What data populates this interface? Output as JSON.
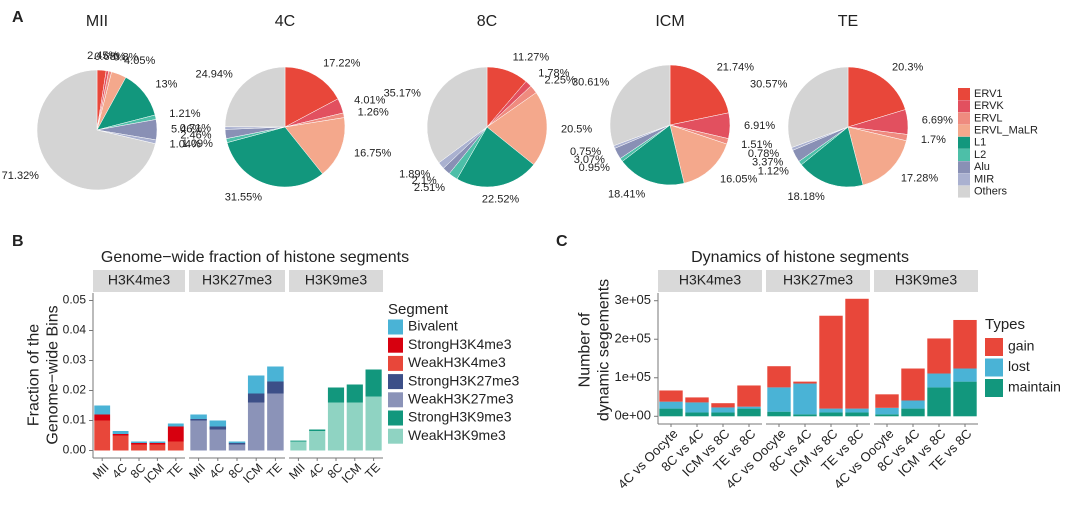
{
  "chart_data": [
    {
      "panel": "A",
      "type": "pie",
      "categories": [
        "ERV1",
        "ERVK",
        "ERVL",
        "ERVL_MaLR",
        "L1",
        "L2",
        "Alu",
        "MIR",
        "Others"
      ],
      "colors": [
        "#e8473a",
        "#e2505f",
        "#ef8b7f",
        "#f4a88c",
        "#12977d",
        "#4dbfa8",
        "#8990b5",
        "#aab1d0",
        "#d4d4d4"
      ],
      "pies": [
        {
          "title": "MII",
          "values": [
            2.45,
            0.68,
            0.8,
            4.05,
            13,
            1.21,
            5.46,
            1.04,
            71.32
          ],
          "value_labels": [
            "2.45%",
            "0.68%",
            "0.8%",
            "4.05%",
            "13%",
            "1.21%",
            "5.46%",
            "1.04%",
            "71.32%"
          ]
        },
        {
          "title": "4C",
          "values": [
            17.22,
            4.01,
            1.26,
            16.75,
            31.55,
            1.09,
            2.46,
            0.71,
            24.94
          ],
          "value_labels": [
            "17.22%",
            "4.01%",
            "1.26%",
            "16.75%",
            "31.55%",
            "1.09%",
            "2.46%",
            "0.71%",
            "24.94%"
          ]
        },
        {
          "title": "8C",
          "values": [
            11.27,
            1.78,
            2.25,
            20.5,
            22.52,
            2.51,
            2.1,
            1.89,
            35.17
          ],
          "value_labels": [
            "11.27%",
            "1.78%",
            "2.25%",
            "20.5%",
            "22.52%",
            "2.51%",
            "2.1%",
            "1.89%",
            "35.17%"
          ]
        },
        {
          "title": "ICM",
          "values": [
            21.74,
            6.91,
            1.51,
            16.05,
            18.41,
            0.95,
            3.07,
            0.75,
            30.61
          ],
          "value_labels": [
            "21.74%",
            "6.91%",
            "1.51%",
            "16.05%",
            "18.41%",
            "0.95%",
            "3.07%",
            "0.75%",
            "30.61%"
          ]
        },
        {
          "title": "TE",
          "values": [
            20.3,
            6.69,
            1.7,
            17.28,
            18.18,
            1.12,
            3.37,
            0.78,
            30.57
          ],
          "value_labels": [
            "20.3%",
            "6.69%",
            "1.7%",
            "17.28%",
            "18.18%",
            "1.12%",
            "3.37%",
            "0.78%",
            "30.57%"
          ]
        }
      ]
    },
    {
      "panel": "B",
      "type": "bar",
      "stacked": true,
      "title": "Genome−wide fraction of histone segments",
      "ylabel": [
        "Fraction of the",
        "Genome−wide Bins"
      ],
      "legend_title": "Segment",
      "facets": [
        {
          "label": "H3K4me3",
          "categories": [
            "MII",
            "4C",
            "8C",
            "ICM",
            "TE"
          ]
        },
        {
          "label": "H3K27me3",
          "categories": [
            "MII",
            "4C",
            "8C",
            "ICM",
            "TE"
          ]
        },
        {
          "label": "H3K9me3",
          "categories": [
            "MII",
            "4C",
            "8C",
            "ICM",
            "TE"
          ]
        }
      ],
      "ylim": [
        -0.0025,
        0.0525
      ],
      "yticks": [
        {
          "value": 0,
          "label": "0.00"
        },
        0.01,
        0.02,
        0.03,
        0.04,
        0.05
      ],
      "series": [
        {
          "name": "Bivalent",
          "color": "#4ab3d6",
          "values": [
            0.003,
            0.001,
            0.0005,
            0.0005,
            0.001,
            0.0015,
            0.002,
            0.0005,
            0.006,
            0.005,
            null,
            null,
            null,
            null,
            null
          ]
        },
        {
          "name": "StrongH3K4me3",
          "color": "#d7000f",
          "values": [
            0.002,
            0.0005,
            0.0005,
            0.0005,
            0.005,
            null,
            null,
            null,
            null,
            null,
            null,
            null,
            null,
            null,
            null
          ]
        },
        {
          "name": "WeakH3K4me3",
          "color": "#e8473a",
          "values": [
            0.01,
            0.005,
            0.002,
            0.002,
            0.003,
            null,
            null,
            null,
            null,
            null,
            null,
            null,
            null,
            null,
            null
          ]
        },
        {
          "name": "StrongH3K27me3",
          "color": "#3c4f88",
          "values": [
            null,
            null,
            null,
            null,
            null,
            0.0005,
            0.001,
            0.0005,
            0.003,
            0.004,
            null,
            null,
            null,
            null,
            null
          ]
        },
        {
          "name": "WeakH3K27me3",
          "color": "#8b93b8",
          "values": [
            null,
            null,
            null,
            null,
            null,
            0.01,
            0.007,
            0.002,
            0.016,
            0.019,
            null,
            null,
            null,
            null,
            null
          ]
        },
        {
          "name": "StrongH3K9me3",
          "color": "#12977d",
          "values": [
            null,
            null,
            null,
            null,
            null,
            null,
            null,
            null,
            null,
            null,
            0.0003,
            0.0005,
            0.005,
            0.006,
            0.009
          ]
        },
        {
          "name": "WeakH3K9me3",
          "color": "#8fd3c2",
          "values": [
            null,
            null,
            null,
            null,
            null,
            null,
            null,
            null,
            null,
            null,
            0.003,
            0.0065,
            0.016,
            0.016,
            0.018
          ]
        }
      ]
    },
    {
      "panel": "C",
      "type": "bar",
      "stacked": true,
      "title": "Dynamics of histone segments",
      "ylabel": [
        "Number of",
        "dynamic segements"
      ],
      "legend_title": "Types",
      "facets": [
        {
          "label": "H3K4me3",
          "categories": [
            "4C vs Oocyte",
            "8C vs 4C",
            "ICM vs 8C",
            "TE vs 8C"
          ]
        },
        {
          "label": "H3K27me3",
          "categories": [
            "4C vs Oocyte",
            "8C vs 4C",
            "ICM vs 8C",
            "TE vs 8C"
          ]
        },
        {
          "label": "H3K9me3",
          "categories": [
            "4C vs Oocyte",
            "8C vs 4C",
            "ICM vs 8C",
            "TE vs 8C"
          ]
        }
      ],
      "ylim": [
        -20000,
        320000
      ],
      "yticks": [
        {
          "value": 0,
          "label": "0e+00"
        },
        {
          "value": 100000,
          "label": "1e+05"
        },
        {
          "value": 200000,
          "label": "2e+05"
        },
        {
          "value": 300000,
          "label": "3e+05"
        }
      ],
      "series": [
        {
          "name": "gain",
          "color": "#e8473a",
          "values": [
            29000,
            13000,
            11000,
            55000,
            55000,
            5000,
            241000,
            285000,
            35000,
            83000,
            91000,
            126000
          ]
        },
        {
          "name": "lost",
          "color": "#4ab3d6",
          "values": [
            18000,
            26000,
            13000,
            5000,
            63000,
            80000,
            10000,
            10000,
            17000,
            21000,
            36000,
            34000
          ]
        },
        {
          "name": "maintain",
          "color": "#12977d",
          "values": [
            20000,
            10000,
            10000,
            20000,
            12000,
            5000,
            10000,
            10000,
            5000,
            20000,
            75000,
            90000
          ]
        }
      ]
    }
  ]
}
